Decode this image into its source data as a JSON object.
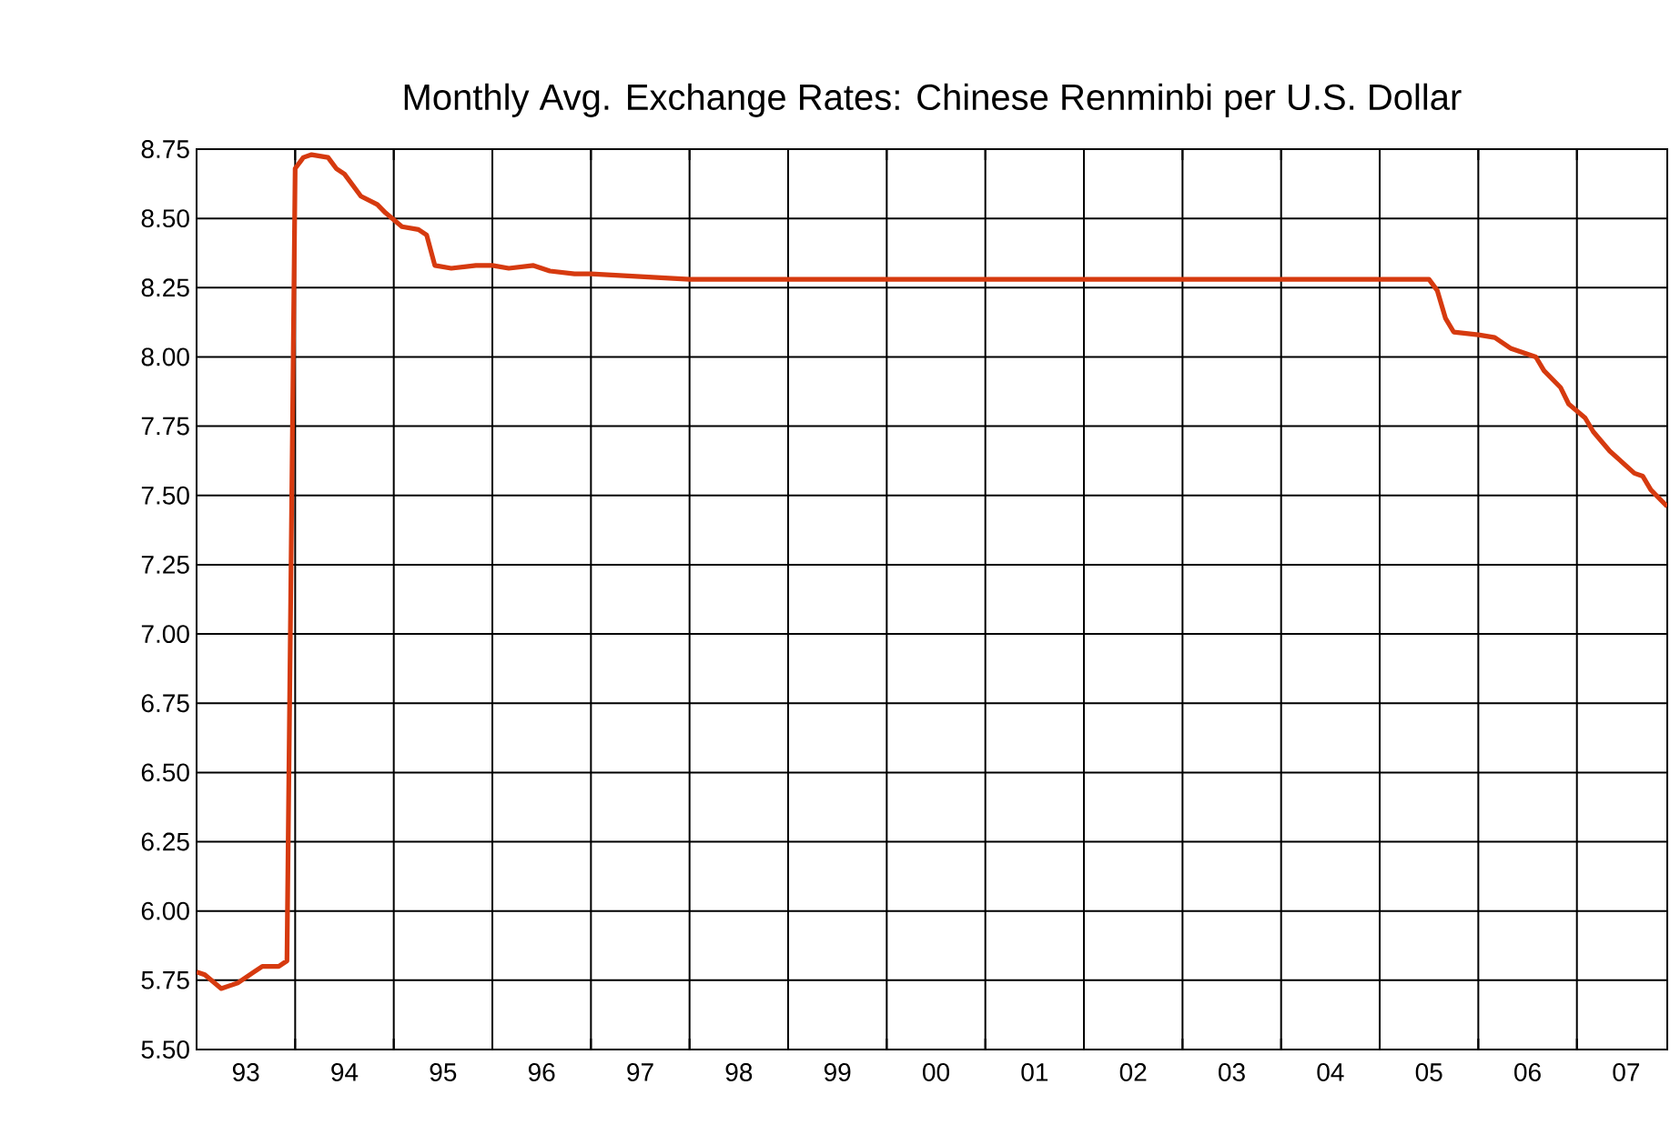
{
  "chart_data": {
    "type": "line",
    "title": "Monthly Avg. Exchange Rates: Chinese Renminbi per U.S. Dollar",
    "series": [
      {
        "color": "#d63a0f",
        "x": [
          "1993-01",
          "1993-02",
          "1993-04",
          "1993-06",
          "1993-08",
          "1993-09",
          "1993-11",
          "1993-12",
          "1994-01",
          "1994-02",
          "1994-03",
          "1994-05",
          "1994-06",
          "1994-07",
          "1994-09",
          "1994-11",
          "1994-12",
          "1995-02",
          "1995-04",
          "1995-05",
          "1995-06",
          "1995-08",
          "1995-11",
          "1996-01",
          "1996-03",
          "1996-06",
          "1996-08",
          "1996-11",
          "1997-01",
          "1997-07",
          "1998-01",
          "2000-01",
          "2002-01",
          "2004-01",
          "2005-07",
          "2005-08",
          "2005-09",
          "2005-10",
          "2006-01",
          "2006-03",
          "2006-05",
          "2006-08",
          "2006-09",
          "2006-11",
          "2006-12",
          "2007-02",
          "2007-03",
          "2007-05",
          "2007-08",
          "2007-09",
          "2007-10",
          "2007-12"
        ],
        "values": [
          5.78,
          5.77,
          5.72,
          5.74,
          5.78,
          5.8,
          5.8,
          5.82,
          8.68,
          8.72,
          8.73,
          8.72,
          8.68,
          8.66,
          8.58,
          8.55,
          8.52,
          8.47,
          8.46,
          8.44,
          8.33,
          8.32,
          8.33,
          8.33,
          8.32,
          8.33,
          8.31,
          8.3,
          8.3,
          8.29,
          8.28,
          8.28,
          8.28,
          8.28,
          8.28,
          8.24,
          8.14,
          8.09,
          8.08,
          8.07,
          8.03,
          8.0,
          7.95,
          7.89,
          7.83,
          7.78,
          7.73,
          7.66,
          7.58,
          7.57,
          7.52,
          7.46
        ]
      }
    ],
    "xlim": [
      "1993-01",
      "2007-12"
    ],
    "xticks": [
      {
        "value": "1993-07",
        "label": "93"
      },
      {
        "value": "1994-07",
        "label": "94"
      },
      {
        "value": "1995-07",
        "label": "95"
      },
      {
        "value": "1996-07",
        "label": "96"
      },
      {
        "value": "1997-07",
        "label": "97"
      },
      {
        "value": "1998-07",
        "label": "98"
      },
      {
        "value": "1999-07",
        "label": "99"
      },
      {
        "value": "2000-07",
        "label": "00"
      },
      {
        "value": "2001-07",
        "label": "01"
      },
      {
        "value": "2002-07",
        "label": "02"
      },
      {
        "value": "2003-07",
        "label": "03"
      },
      {
        "value": "2004-07",
        "label": "04"
      },
      {
        "value": "2005-07",
        "label": "05"
      },
      {
        "value": "2006-07",
        "label": "06"
      },
      {
        "value": "2007-07",
        "label": "07"
      },
      {
        "value": "1994",
        "label": null
      },
      {
        "value": "1995",
        "label": null
      },
      {
        "value": "1996",
        "label": null
      },
      {
        "value": "1997",
        "label": null
      },
      {
        "value": "1998",
        "label": null
      },
      {
        "value": "1999",
        "label": null
      },
      {
        "value": "2000",
        "label": null
      },
      {
        "value": "2001",
        "label": null
      },
      {
        "value": "2002",
        "label": null
      },
      {
        "value": "2003",
        "label": null
      },
      {
        "value": "2004",
        "label": null
      },
      {
        "value": "2005",
        "label": null
      },
      {
        "value": "2006",
        "label": null
      },
      {
        "value": "2007",
        "label": null
      }
    ],
    "ylim": [
      5.5,
      8.75
    ],
    "yticks": [
      {
        "value": 5.5,
        "label": "5.50"
      },
      {
        "value": 5.75,
        "label": "5.75"
      },
      {
        "value": 6.0,
        "label": "6.00"
      },
      {
        "value": 6.25,
        "label": "6.25"
      },
      {
        "value": 6.5,
        "label": "6.50"
      },
      {
        "value": 6.75,
        "label": "6.75"
      },
      {
        "value": 7.0,
        "label": "7.00"
      },
      {
        "value": 7.25,
        "label": "7.25"
      },
      {
        "value": 7.5,
        "label": "7.50"
      },
      {
        "value": 7.75,
        "label": "7.75"
      },
      {
        "value": 8.0,
        "label": "8.00"
      },
      {
        "value": 8.25,
        "label": "8.25"
      },
      {
        "value": 8.5,
        "label": "8.50"
      },
      {
        "value": 8.75,
        "label": "8.75"
      }
    ],
    "grid": true,
    "marker": "none",
    "line_style": "solid"
  }
}
